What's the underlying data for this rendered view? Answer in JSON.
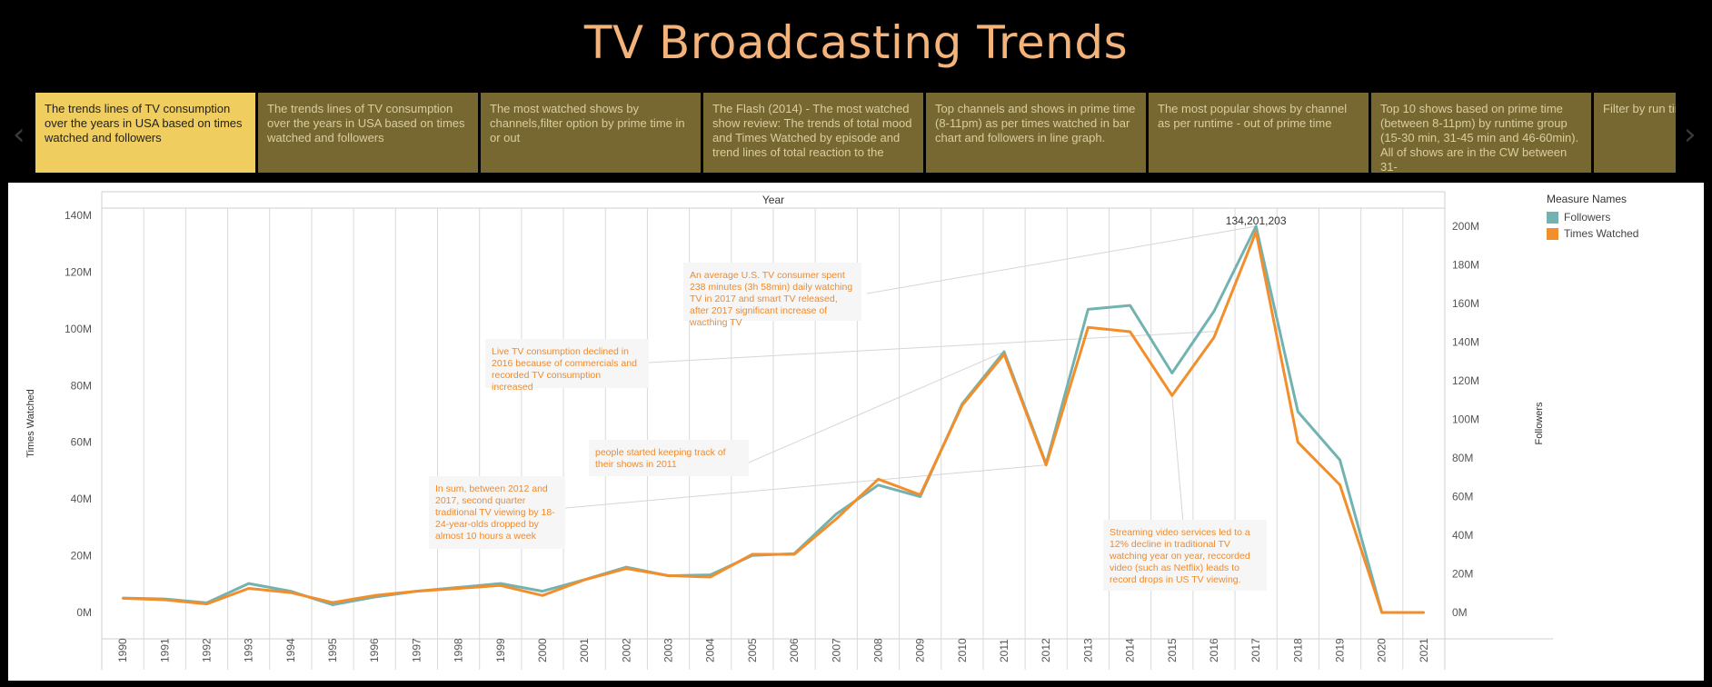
{
  "dashboard": {
    "title": "TV Broadcasting Trends",
    "nav_prev": "‹",
    "nav_next": "›"
  },
  "story_points": [
    {
      "label": "The trends lines of TV consumption over the years in USA based on times watched and followers",
      "active": true
    },
    {
      "label": "The trends lines of TV consumption over the years in USA based on times watched and followers",
      "active": false
    },
    {
      "label": "The most watched shows by channels,filter option by prime time in or out",
      "active": false
    },
    {
      "label": "The Flash (2014) - The most watched show review: The trends of total mood and Times Watched by episode and trend lines of total reaction to the",
      "active": false
    },
    {
      "label": "Top channels and shows  in prime time (8-11pm) as per times watched in bar chart and followers in line graph.",
      "active": false
    },
    {
      "label": "The most popular shows by channel as per runtime - out of prime time",
      "active": false
    },
    {
      "label": "Top 10 shows based on prime time (between 8-11pm) by runtime group (15-30 min, 31-45 min and 46-60min). All of shows are in the CW between 31-",
      "active": false
    },
    {
      "label": "Filter by run time shows. Run ti",
      "active": false
    }
  ],
  "legend": {
    "title": "Measure Names",
    "items": [
      {
        "name": "Followers",
        "color": "#72b3b1"
      },
      {
        "name": "Times Watched",
        "color": "#f28e2b"
      }
    ]
  },
  "annotations": [
    {
      "id": "a1",
      "text": "An average U.S. TV consumer  spent 238 minutes (3h 58min) daily watching TV in 2017 and smart TV released, after 2017 significant increase of wacthing TV"
    },
    {
      "id": "a2",
      "text": "Live TV consumption declined in 2016 because of commercials and recorded TV consumption increased"
    },
    {
      "id": "a3",
      "text": "people started keeping track of their shows in 2011"
    },
    {
      "id": "a4",
      "text": "In sum, between 2012 and 2017, second quarter traditional TV viewing by 18-24-year-olds dropped by almost 10 hours a week"
    },
    {
      "id": "a5",
      "text": "Streaming video services led to a 12% decline in traditional TV watching year on year, reccorded video (such as Netflix) leads to record drops in US TV viewing."
    }
  ],
  "chart_data": {
    "type": "line",
    "title": "",
    "xlabel": "Year",
    "ylabel": "Times Watched",
    "y2label": "Followers",
    "x": [
      "1990",
      "1991",
      "1992",
      "1993",
      "1994",
      "1995",
      "1996",
      "1997",
      "1998",
      "1999",
      "2000",
      "2001",
      "2002",
      "2003",
      "2004",
      "2005",
      "2006",
      "2007",
      "2008",
      "2009",
      "2010",
      "2011",
      "2012",
      "2013",
      "2014",
      "2015",
      "2016",
      "2017",
      "2018",
      "2019",
      "2020",
      "2021"
    ],
    "ylim": [
      0,
      140000000
    ],
    "y2lim": [
      0,
      200000000
    ],
    "yticks": [
      "0M",
      "20M",
      "40M",
      "60M",
      "80M",
      "100M",
      "120M",
      "140M"
    ],
    "y2ticks": [
      "0M",
      "20M",
      "40M",
      "60M",
      "80M",
      "100M",
      "120M",
      "140M",
      "160M",
      "180M",
      "200M"
    ],
    "grid": true,
    "legend_position": "right",
    "peak_label": "134,201,203",
    "series": [
      {
        "name": "Followers",
        "axis": "right",
        "color": "#72b3b1",
        "values": [
          7500000,
          7000000,
          5000000,
          15000000,
          11000000,
          4000000,
          8000000,
          11000000,
          13000000,
          15000000,
          11000000,
          17000000,
          23500000,
          19000000,
          19500000,
          29500000,
          30500000,
          51000000,
          66000000,
          60000000,
          108000000,
          135000000,
          77000000,
          157000000,
          159000000,
          124000000,
          156000000,
          200000000,
          104000000,
          79000000,
          0,
          0
        ]
      },
      {
        "name": "Times Watched",
        "axis": "left",
        "color": "#f28e2b",
        "values": [
          5000000,
          4500000,
          3000000,
          8500000,
          7000000,
          3500000,
          6000000,
          7500000,
          8500000,
          9500000,
          6000000,
          11500000,
          15500000,
          13000000,
          12500000,
          20500000,
          20500000,
          33000000,
          47000000,
          41500000,
          73000000,
          91000000,
          52000000,
          100500000,
          99000000,
          76500000,
          97000000,
          134201203,
          60000000,
          45000000,
          0,
          0
        ]
      }
    ]
  }
}
